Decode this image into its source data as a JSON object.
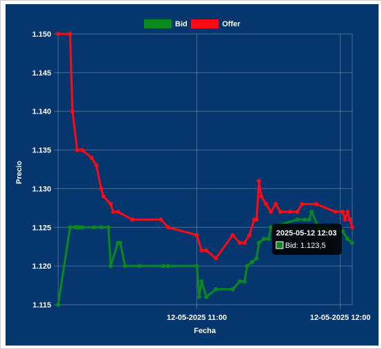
{
  "chart_data": {
    "type": "line",
    "xlabel": "Fecha",
    "ylabel": "Precio",
    "ylim": [
      1.115,
      1.15
    ],
    "yticks": [
      "1.115",
      "1.120",
      "1.125",
      "1.130",
      "1.135",
      "1.140",
      "1.145",
      "1.150"
    ],
    "xlim": [
      "2025-05-12 10:02",
      "2025-05-12 12:05"
    ],
    "xticks": [
      {
        "t": "2025-05-12 11:00",
        "label": "12-05-2025 11:00"
      },
      {
        "t": "2025-05-12 12:00",
        "label": "12-05-2025 12:00"
      }
    ],
    "grid": true,
    "legend_position": "top-center",
    "series": [
      {
        "name": "Bid",
        "color": "#0a8a1e",
        "points": [
          [
            "2025-05-12 10:02",
            1.115
          ],
          [
            "2025-05-12 10:07",
            1.125
          ],
          [
            "2025-05-12 10:09",
            1.125
          ],
          [
            "2025-05-12 10:10",
            1.125
          ],
          [
            "2025-05-12 10:11",
            1.125
          ],
          [
            "2025-05-12 10:12",
            1.125
          ],
          [
            "2025-05-12 10:17",
            1.125
          ],
          [
            "2025-05-12 10:20",
            1.125
          ],
          [
            "2025-05-12 10:23",
            1.125
          ],
          [
            "2025-05-12 10:24",
            1.12
          ],
          [
            "2025-05-12 10:27",
            1.123
          ],
          [
            "2025-05-12 10:28",
            1.123
          ],
          [
            "2025-05-12 10:30",
            1.12
          ],
          [
            "2025-05-12 10:36",
            1.12
          ],
          [
            "2025-05-12 10:46",
            1.12
          ],
          [
            "2025-05-12 10:48",
            1.12
          ],
          [
            "2025-05-12 11:00",
            1.12
          ],
          [
            "2025-05-12 11:01",
            1.116
          ],
          [
            "2025-05-12 11:02",
            1.118
          ],
          [
            "2025-05-12 11:04",
            1.116
          ],
          [
            "2025-05-12 11:08",
            1.117
          ],
          [
            "2025-05-12 11:15",
            1.117
          ],
          [
            "2025-05-12 11:18",
            1.118
          ],
          [
            "2025-05-12 11:20",
            1.118
          ],
          [
            "2025-05-12 11:21",
            1.12
          ],
          [
            "2025-05-12 11:23",
            1.1205
          ],
          [
            "2025-05-12 11:25",
            1.121
          ],
          [
            "2025-05-12 11:26",
            1.123
          ],
          [
            "2025-05-12 11:28",
            1.1235
          ],
          [
            "2025-05-12 11:30",
            1.1235
          ],
          [
            "2025-05-12 11:31",
            1.125
          ],
          [
            "2025-05-12 11:42",
            1.126
          ],
          [
            "2025-05-12 11:45",
            1.126
          ],
          [
            "2025-05-12 11:47",
            1.126
          ],
          [
            "2025-05-12 11:48",
            1.127
          ],
          [
            "2025-05-12 11:51",
            1.125
          ],
          [
            "2025-05-12 11:54",
            1.125
          ],
          [
            "2025-05-12 11:58",
            1.1245
          ],
          [
            "2025-05-12 12:01",
            1.1245
          ],
          [
            "2025-05-12 12:03",
            1.1235
          ],
          [
            "2025-05-12 12:05",
            1.123
          ]
        ]
      },
      {
        "name": "Offer",
        "color": "#ff0a14",
        "points": [
          [
            "2025-05-12 10:02",
            1.15
          ],
          [
            "2025-05-12 10:07",
            1.15
          ],
          [
            "2025-05-12 10:08",
            1.14
          ],
          [
            "2025-05-12 10:10",
            1.135
          ],
          [
            "2025-05-12 10:12",
            1.135
          ],
          [
            "2025-05-12 10:16",
            1.134
          ],
          [
            "2025-05-12 10:18",
            1.133
          ],
          [
            "2025-05-12 10:20",
            1.13
          ],
          [
            "2025-05-12 10:21",
            1.129
          ],
          [
            "2025-05-12 10:24",
            1.128
          ],
          [
            "2025-05-12 10:25",
            1.127
          ],
          [
            "2025-05-12 10:27",
            1.127
          ],
          [
            "2025-05-12 10:33",
            1.126
          ],
          [
            "2025-05-12 10:45",
            1.126
          ],
          [
            "2025-05-12 10:48",
            1.125
          ],
          [
            "2025-05-12 11:00",
            1.124
          ],
          [
            "2025-05-12 11:02",
            1.122
          ],
          [
            "2025-05-12 11:04",
            1.122
          ],
          [
            "2025-05-12 11:08",
            1.121
          ],
          [
            "2025-05-12 11:15",
            1.124
          ],
          [
            "2025-05-12 11:18",
            1.123
          ],
          [
            "2025-05-12 11:20",
            1.123
          ],
          [
            "2025-05-12 11:22",
            1.124
          ],
          [
            "2025-05-12 11:24",
            1.126
          ],
          [
            "2025-05-12 11:25",
            1.126
          ],
          [
            "2025-05-12 11:26",
            1.131
          ],
          [
            "2025-05-12 11:27",
            1.129
          ],
          [
            "2025-05-12 11:29",
            1.128
          ],
          [
            "2025-05-12 11:31",
            1.127
          ],
          [
            "2025-05-12 11:33",
            1.128
          ],
          [
            "2025-05-12 11:35",
            1.127
          ],
          [
            "2025-05-12 11:39",
            1.127
          ],
          [
            "2025-05-12 11:42",
            1.127
          ],
          [
            "2025-05-12 11:44",
            1.128
          ],
          [
            "2025-05-12 11:50",
            1.128
          ],
          [
            "2025-05-12 11:58",
            1.127
          ],
          [
            "2025-05-12 12:01",
            1.127
          ],
          [
            "2025-05-12 12:02",
            1.126
          ],
          [
            "2025-05-12 12:03",
            1.127
          ],
          [
            "2025-05-12 12:04",
            1.126
          ],
          [
            "2025-05-12 12:05",
            1.125
          ]
        ]
      }
    ],
    "tooltip": {
      "title": "2025-05-12 12:03",
      "label": "Bid: 1.123,5",
      "color": "#0a8a1e"
    }
  }
}
